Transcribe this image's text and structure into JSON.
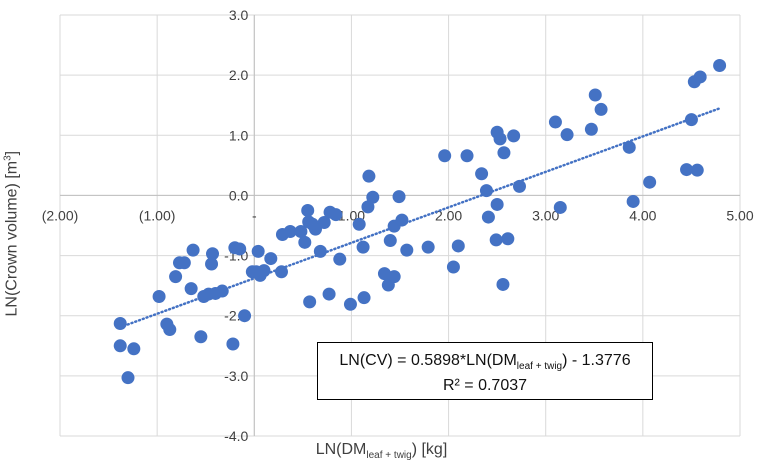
{
  "chart_data": {
    "type": "scatter",
    "xlabel_main": "LN(DM",
    "xlabel_sub": "leaf + twig",
    "xlabel_tail": ") [kg]",
    "ylabel_main": "LN(Crown volume) [m",
    "ylabel_sup": "3",
    "ylabel_tail": "]",
    "xlim": [
      -2.0,
      5.0
    ],
    "ylim": [
      -4.0,
      3.0
    ],
    "x_ticks": [
      -2,
      -1,
      0,
      1,
      2,
      3,
      4,
      5
    ],
    "x_tick_labels": [
      "(2.00)",
      "(1.00)",
      "-",
      "1.00",
      "2.00",
      "3.00",
      "4.00",
      "5.00"
    ],
    "y_ticks": [
      3,
      2,
      1,
      0,
      -1,
      -2,
      -3,
      -4
    ],
    "y_tick_labels": [
      "3.0",
      "2.0",
      "1.0",
      "0.0",
      "-1.0",
      "-2.0",
      "-3.0",
      "-4.0"
    ],
    "grid": true,
    "marker_color": "#4472C4",
    "trendline": {
      "type": "linear",
      "slope": 0.5898,
      "intercept": -1.3776,
      "x_range": [
        -1.38,
        4.78
      ],
      "style": "dotted",
      "color": "#4472C4"
    },
    "equation": {
      "line1_main": "LN(CV) = 0.5898*LN(DM",
      "line1_sub": "leaf + twig",
      "line1_tail": ") - 1.3776",
      "line2": "R² = 0.7037"
    },
    "points": [
      [
        -1.38,
        -2.13
      ],
      [
        -1.38,
        -2.5
      ],
      [
        -1.3,
        -3.03
      ],
      [
        -1.24,
        -2.55
      ],
      [
        -0.98,
        -1.68
      ],
      [
        -0.9,
        -2.14
      ],
      [
        -0.87,
        -2.23
      ],
      [
        -0.81,
        -1.35
      ],
      [
        -0.77,
        -1.12
      ],
      [
        -0.72,
        -1.12
      ],
      [
        -0.65,
        -1.55
      ],
      [
        -0.63,
        -0.91
      ],
      [
        -0.55,
        -2.35
      ],
      [
        -0.52,
        -1.68
      ],
      [
        -0.47,
        -1.64
      ],
      [
        -0.44,
        -1.14
      ],
      [
        -0.43,
        -0.97
      ],
      [
        -0.4,
        -1.63
      ],
      [
        -0.33,
        -1.59
      ],
      [
        -0.22,
        -2.47
      ],
      [
        -0.2,
        -0.87
      ],
      [
        -0.15,
        -0.89
      ],
      [
        -0.1,
        -2.0
      ],
      [
        -0.02,
        -1.27
      ],
      [
        0.02,
        -1.27
      ],
      [
        0.04,
        -0.93
      ],
      [
        0.06,
        -1.33
      ],
      [
        0.1,
        -1.25
      ],
      [
        0.17,
        -1.05
      ],
      [
        0.28,
        -1.27
      ],
      [
        0.29,
        -0.65
      ],
      [
        0.37,
        -0.6
      ],
      [
        0.48,
        -0.6
      ],
      [
        0.52,
        -0.78
      ],
      [
        0.55,
        -0.25
      ],
      [
        0.56,
        -0.44
      ],
      [
        0.57,
        -1.77
      ],
      [
        0.6,
        -0.48
      ],
      [
        0.63,
        -0.56
      ],
      [
        0.68,
        -0.93
      ],
      [
        0.72,
        -0.45
      ],
      [
        0.77,
        -1.64
      ],
      [
        0.78,
        -0.28
      ],
      [
        0.84,
        -0.32
      ],
      [
        0.88,
        -1.06
      ],
      [
        0.99,
        -1.81
      ],
      [
        1.08,
        -0.48
      ],
      [
        1.12,
        -0.86
      ],
      [
        1.13,
        -1.7
      ],
      [
        1.17,
        -0.19
      ],
      [
        1.18,
        0.32
      ],
      [
        1.22,
        -0.03
      ],
      [
        1.34,
        -1.3
      ],
      [
        1.38,
        -1.49
      ],
      [
        1.4,
        -0.75
      ],
      [
        1.44,
        -1.35
      ],
      [
        1.44,
        -0.51
      ],
      [
        1.49,
        -0.02
      ],
      [
        1.52,
        -0.41
      ],
      [
        1.57,
        -0.91
      ],
      [
        1.79,
        -0.86
      ],
      [
        1.96,
        0.66
      ],
      [
        2.05,
        -1.19
      ],
      [
        2.1,
        -0.84
      ],
      [
        2.19,
        0.66
      ],
      [
        2.34,
        0.36
      ],
      [
        2.39,
        0.08
      ],
      [
        2.41,
        -0.36
      ],
      [
        2.49,
        -0.74
      ],
      [
        2.5,
        -0.15
      ],
      [
        2.5,
        1.05
      ],
      [
        2.53,
        0.94
      ],
      [
        2.57,
        0.71
      ],
      [
        2.56,
        -1.48
      ],
      [
        2.61,
        -0.72
      ],
      [
        2.67,
        0.99
      ],
      [
        2.73,
        0.15
      ],
      [
        3.1,
        1.22
      ],
      [
        3.15,
        -0.2
      ],
      [
        3.22,
        1.01
      ],
      [
        3.47,
        1.1
      ],
      [
        3.51,
        1.67
      ],
      [
        3.57,
        1.43
      ],
      [
        3.86,
        0.8
      ],
      [
        3.9,
        -0.1
      ],
      [
        4.07,
        0.22
      ],
      [
        4.45,
        0.43
      ],
      [
        4.5,
        1.26
      ],
      [
        4.53,
        1.89
      ],
      [
        4.56,
        0.42
      ],
      [
        4.59,
        1.97
      ],
      [
        4.79,
        2.16
      ]
    ]
  }
}
